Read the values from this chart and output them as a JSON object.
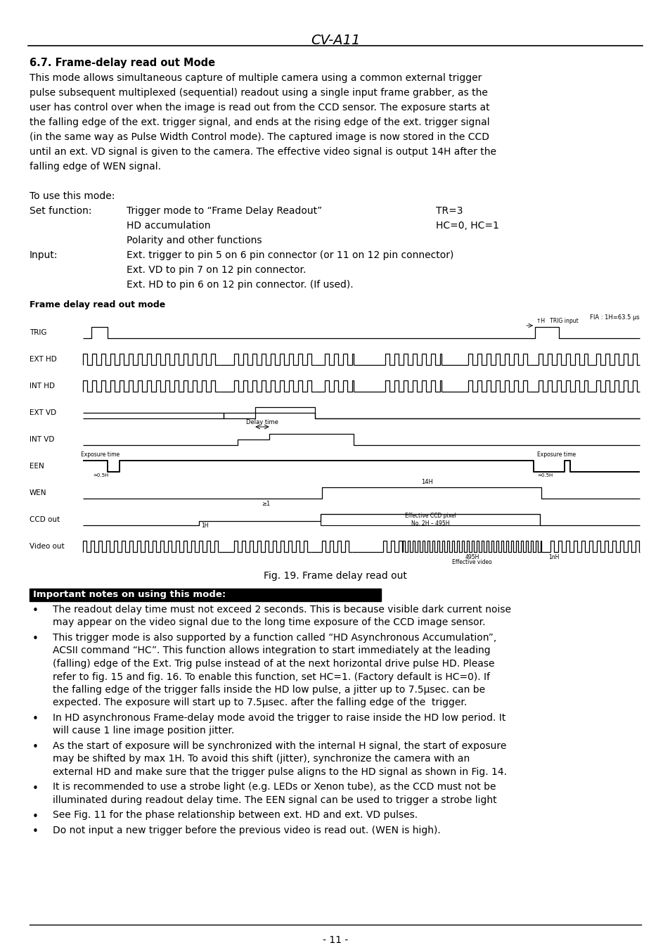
{
  "title": "CV-A11",
  "section_title": "6.7. Frame-delay read out Mode",
  "body_lines": [
    "This mode allows simultaneous capture of multiple camera using a common external trigger",
    "pulse subsequent multiplexed (sequential) readout using a single input frame grabber, as the",
    "user has control over when the image is read out from the CCD sensor. The exposure starts at",
    "the falling edge of the ext. trigger signal, and ends at the rising edge of the ext. trigger signal",
    "(in the same way as Pulse Width Control mode). The captured image is now stored in the CCD",
    "until an ext. VD signal is given to the camera. The effective video signal is output 14H after the",
    "falling edge of WEN signal."
  ],
  "use_mode_text": "To use this mode:",
  "set_function_label": "Set function:",
  "set_function_col1": [
    "Trigger mode to “Frame Delay Readout”",
    "HD accumulation",
    "Polarity and other functions"
  ],
  "set_function_col2": [
    "TR=3",
    "HC=0, HC=1",
    ""
  ],
  "input_label": "Input:",
  "input_items": [
    "Ext. trigger to pin 5 on 6 pin connector (or 11 on 12 pin connector)",
    "Ext. VD to pin 7 on 12 pin connector.",
    "Ext. HD to pin 6 on 12 pin connector. (If used)."
  ],
  "diagram_title": "Frame delay read out mode",
  "fia_label": "FIA : 1H=63.5 μs",
  "signal_labels": [
    "TRIG",
    "EXT HD",
    "INT HD",
    "EXT VD",
    "INT VD",
    "EEN",
    "WEN",
    "CCD out",
    "Video out"
  ],
  "diagram_caption": "Fig. 19. Frame delay read out",
  "important_title": "Important notes on using this mode:",
  "bullet_points": [
    "The readout delay time must not exceed 2 seconds. This is because visible dark current noise\nmay appear on the video signal due to the long time exposure of the CCD image sensor.",
    "This trigger mode is also supported by a function called “HD Asynchronous Accumulation”,\nACSII command “HC”. This function allows integration to start immediately at the leading\n(falling) edge of the Ext. Trig pulse instead of at the next horizontal drive pulse HD. Please\nrefer to fig. 15 and fig. 16. To enable this function, set HC=1. (Factory default is HC=0). If\nthe falling edge of the trigger falls inside the HD low pulse, a jitter up to 7.5μsec. can be\nexpected. The exposure will start up to 7.5μsec. after the falling edge of the  trigger.",
    "In HD asynchronous Frame-delay mode avoid the trigger to raise inside the HD low period. It\nwill cause 1 line image position jitter.",
    "As the start of exposure will be synchronized with the internal H signal, the start of exposure\nmay be shifted by max 1H. To avoid this shift (jitter), synchronize the camera with an\nexternal HD and make sure that the trigger pulse aligns to the HD signal as shown in Fig. 14.",
    "It is recommended to use a strobe light (e.g. LEDs or Xenon tube), as the CCD must not be\nilluminated during readout delay time. The EEN signal can be used to trigger a strobe light",
    "See Fig. 11 for the phase relationship between ext. HD and ext. VD pulses.",
    "Do not input a new trigger before the previous video is read out. (WEN is high)."
  ],
  "footer": "- 11 -"
}
